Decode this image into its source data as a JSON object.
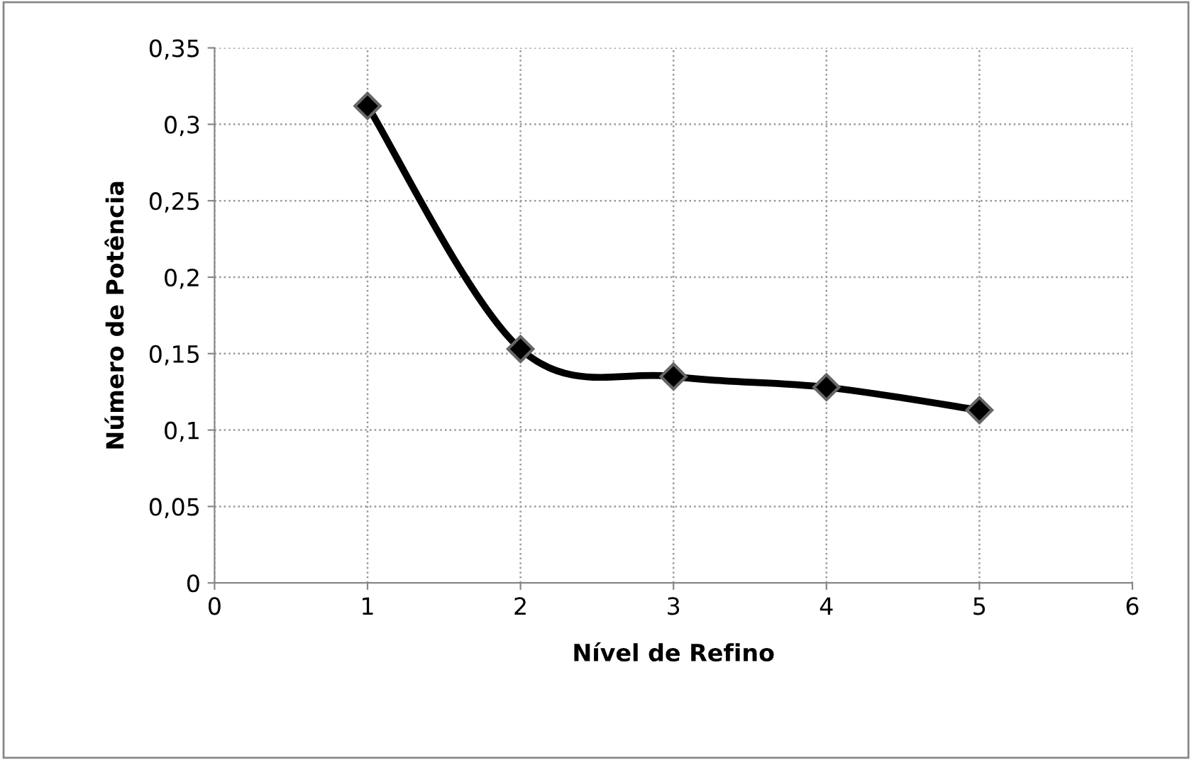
{
  "chart_data": {
    "type": "line",
    "xlabel": "Nível de Refino",
    "ylabel": "Número de Potência",
    "x": [
      1,
      2,
      3,
      4,
      5
    ],
    "series": [
      {
        "color": "#000000",
        "values": [
          0.312,
          0.153,
          0.135,
          0.128,
          0.113
        ]
      }
    ],
    "xlim": [
      0,
      6
    ],
    "xticks": [
      0,
      1,
      2,
      3,
      4,
      5,
      6
    ],
    "ylim": [
      0,
      0.35
    ],
    "yticks": [
      {
        "value": 0,
        "label": "0"
      },
      {
        "value": 0.05,
        "label": "0,05"
      },
      {
        "value": 0.1,
        "label": "0,1"
      },
      {
        "value": 0.15,
        "label": "0,15"
      },
      {
        "value": 0.2,
        "label": "0,2"
      },
      {
        "value": 0.25,
        "label": "0,25"
      },
      {
        "value": 0.3,
        "label": "0,3"
      },
      {
        "value": 0.35,
        "label": "0,35"
      }
    ],
    "grid": true,
    "marker": "diamond",
    "line_style": "solid"
  }
}
